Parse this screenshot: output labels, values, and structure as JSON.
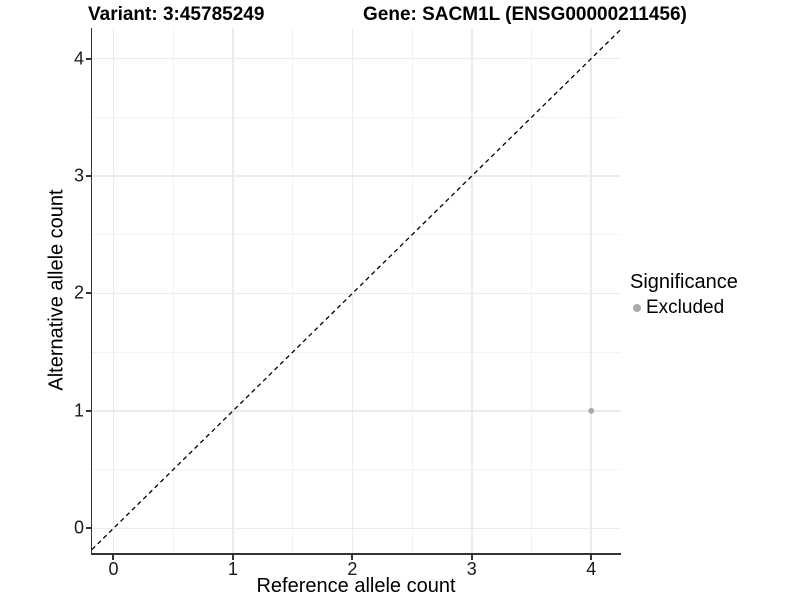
{
  "chart_data": {
    "type": "scatter",
    "titles": {
      "left": "Variant: 3:45785249",
      "right": "Gene: SACM1L (ENSG00000211456)"
    },
    "xlabel": "Reference allele count",
    "ylabel": "Alternative allele count",
    "x_ticks": [
      0,
      1,
      2,
      3,
      4
    ],
    "y_ticks": [
      0,
      1,
      2,
      3,
      4
    ],
    "xlim": [
      -0.18,
      4.245
    ],
    "ylim": [
      -0.21,
      4.26
    ],
    "grid": {
      "major": true,
      "minor": true
    },
    "reference_line": {
      "type": "identity",
      "slope": 1,
      "intercept": 0,
      "style": "dashed",
      "color": "#000000"
    },
    "series": [
      {
        "name": "Excluded",
        "color": "#ababab",
        "points": [
          {
            "x": 4,
            "y": 1
          }
        ]
      }
    ],
    "legend": {
      "position": "right",
      "title": "Significance",
      "entries": [
        {
          "label": "Excluded",
          "color": "#ababab"
        }
      ]
    }
  },
  "colors": {
    "grid_major": "#ebebeb",
    "grid_minor": "#f3f3f3",
    "axis_line": "#333333",
    "tick_text": "#1a1a1a",
    "dashed_line": "#000000",
    "point": "#ababab"
  }
}
